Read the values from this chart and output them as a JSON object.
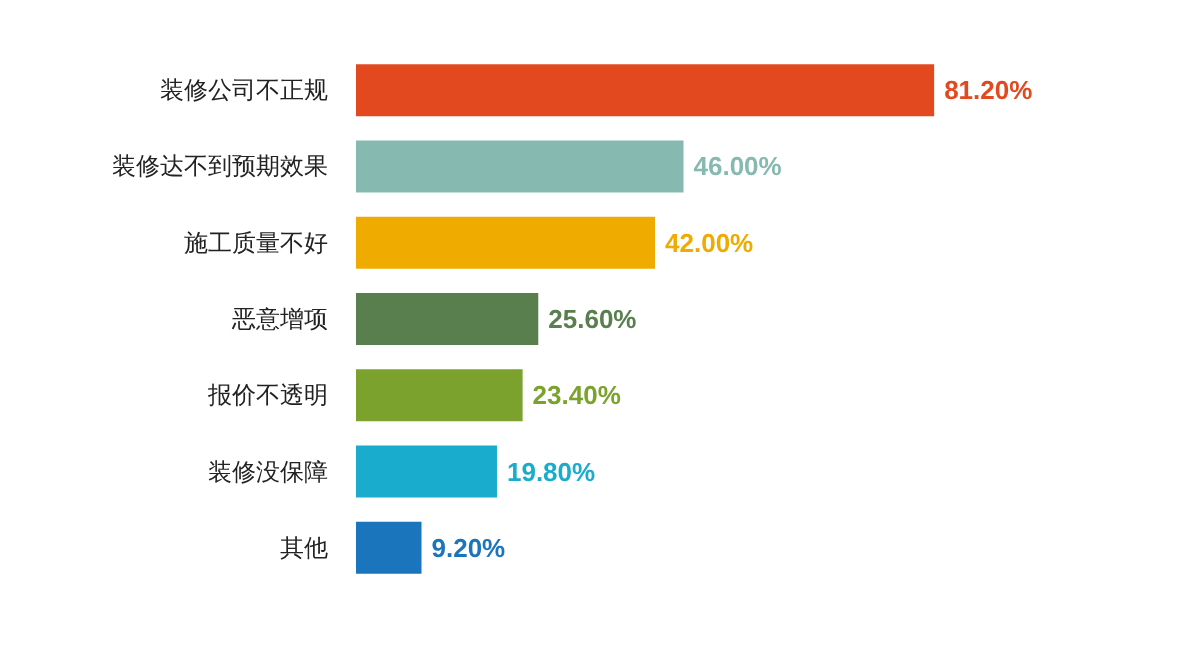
{
  "chart_data": {
    "type": "bar",
    "orientation": "horizontal",
    "categories": [
      "装修公司不正规",
      "装修达不到预期效果",
      "施工质量不好",
      "恶意增项",
      "报价不透明",
      "装修没保障",
      "其他"
    ],
    "values": [
      81.2,
      46.0,
      42.0,
      25.6,
      23.4,
      19.8,
      9.2
    ],
    "value_labels": [
      "81.20%",
      "46.00%",
      "42.00%",
      "25.60%",
      "23.40%",
      "19.80%",
      "9.20%"
    ],
    "colors": [
      "#e2491f",
      "#86b9b0",
      "#f0ab00",
      "#5a7f4f",
      "#7aa22d",
      "#1aaccc",
      "#1b75bc"
    ],
    "tick_labels": "y"
  }
}
